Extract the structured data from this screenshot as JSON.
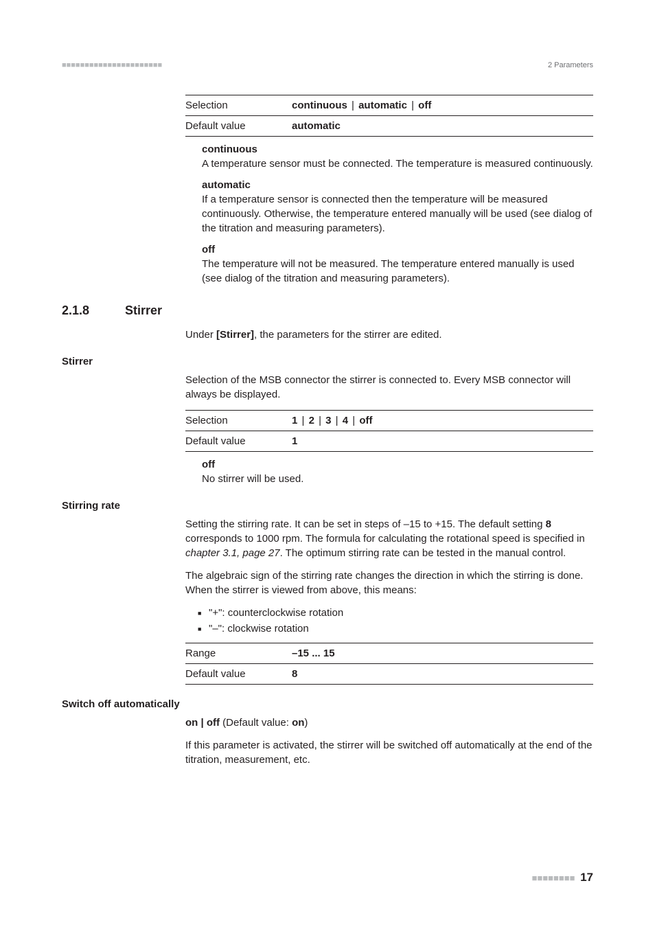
{
  "header": {
    "left_dashes": "■■■■■■■■■■■■■■■■■■■■■■",
    "right_text": "2 Parameters"
  },
  "top_table": {
    "rows": [
      {
        "key": "Selection",
        "val_parts": [
          "continuous",
          "automatic",
          "off"
        ],
        "sep": " | "
      },
      {
        "key": "Default value",
        "val_parts": [
          "automatic"
        ],
        "sep": ""
      }
    ]
  },
  "top_defs": [
    {
      "term": "continuous",
      "desc": "A temperature sensor must be connected. The temperature is measured continuously."
    },
    {
      "term": "automatic",
      "desc": "If a temperature sensor is connected then the temperature will be measured continuously. Otherwise, the temperature entered manually will be used (see dialog of the titration and measuring parameters)."
    },
    {
      "term": "off",
      "desc": "The temperature will not be measured. The temperature entered manually is used (see dialog of the titration and measuring parameters)."
    }
  ],
  "section": {
    "num": "2.1.8",
    "title": "Stirrer",
    "intro_prefix": "Under ",
    "intro_bold": "[Stirrer]",
    "intro_suffix": ", the parameters for the stirrer are edited."
  },
  "stirrer": {
    "heading": "Stirrer",
    "para": "Selection of the MSB connector the stirrer is connected to. Every MSB connector will always be displayed.",
    "table": {
      "rows": [
        {
          "key": "Selection",
          "val_parts": [
            "1",
            "2",
            "3",
            "4",
            "off"
          ],
          "sep": " | "
        },
        {
          "key": "Default value",
          "val_parts": [
            "1"
          ],
          "sep": ""
        }
      ]
    },
    "def": {
      "term": "off",
      "desc": "No stirrer will be used."
    }
  },
  "stirring_rate": {
    "heading": "Stirring rate",
    "para1_a": "Setting the stirring rate. It can be set in steps of –15 to +15. The default setting ",
    "para1_bold": "8",
    "para1_b": " corresponds to 1000 rpm. The formula for calculating the rotational speed is specified in ",
    "para1_ital": "chapter 3.1, page 27",
    "para1_c": ". The optimum stirring rate can be tested in the manual control.",
    "para2": "The algebraic sign of the stirring rate changes the direction in which the stirring is done. When the stirrer is viewed from above, this means:",
    "bullets": [
      "\"+\": counterclockwise rotation",
      "\"–\": clockwise rotation"
    ],
    "table": {
      "rows": [
        {
          "key": "Range",
          "val_parts": [
            "–15 ... 15"
          ],
          "sep": ""
        },
        {
          "key": "Default value",
          "val_parts": [
            "8"
          ],
          "sep": ""
        }
      ]
    }
  },
  "switch_off": {
    "heading": "Switch off automatically",
    "opts_a": "on | off",
    "opts_b": " (Default value: ",
    "opts_bold": "on",
    "opts_c": ")",
    "para": "If this parameter is activated, the stirrer will be switched off automatically at the end of the titration, measurement, etc."
  },
  "footer": {
    "dashes": "■■■■■■■■",
    "page": "17"
  }
}
